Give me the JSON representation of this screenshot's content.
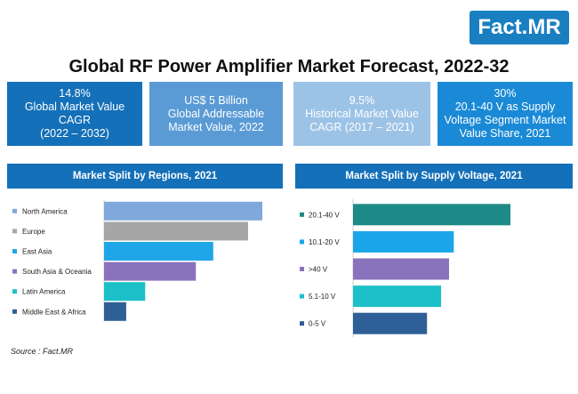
{
  "logo": {
    "text_main": "Fact",
    "text_dot": ".",
    "text_suffix": "MR",
    "color": "#1a7fc1"
  },
  "title": "Global RF Power Amplifier Market Forecast, 2022-32",
  "kpis": [
    {
      "lines": [
        "14.8%",
        "Global Market Value",
        "CAGR",
        "(2022 – 2032)"
      ],
      "color": "#1470b8"
    },
    {
      "lines": [
        "US$ 5 Billion",
        "Global Addressable",
        "Market Value, 2022"
      ],
      "color": "#5a9bd5"
    },
    {
      "lines": [
        "9.5%",
        "Historical Market Value",
        "CAGR (2017 – 2021)"
      ],
      "color": "#9cc3e6"
    },
    {
      "lines": [
        "30%",
        "20.1-40 V as Supply",
        "Voltage Segment Market",
        "Value Share, 2021"
      ],
      "color": "#1b8ad6"
    }
  ],
  "panels": {
    "left_header": "Market Split by Regions, 2021",
    "right_header": "Market Split by Supply Voltage, 2021",
    "header_color": "#1470b8"
  },
  "chart_data": [
    {
      "type": "bar",
      "orientation": "horizontal",
      "title": "Market Split by Regions, 2021",
      "categories": [
        "North America",
        "Europe",
        "East Asia",
        "South Asia & Oceania",
        "Latin America",
        "Middle East & Africa"
      ],
      "values": [
        100,
        91,
        69,
        58,
        26,
        14
      ],
      "colors": [
        "#7fa8dc",
        "#a6a6a6",
        "#1fa6e8",
        "#8a72bd",
        "#1cc0c8",
        "#2f5f97"
      ],
      "xlim": [
        0,
        100
      ],
      "grid": false,
      "axis_labels_shown": false
    },
    {
      "type": "bar",
      "orientation": "horizontal",
      "title": "Market Split by Supply Voltage, 2021",
      "categories": [
        "20.1-40 V",
        "10.1-20 V",
        ">40 V",
        "5.1-10 V",
        "0-5 V"
      ],
      "values": [
        100,
        64,
        61,
        56,
        47
      ],
      "colors": [
        "#1e8a87",
        "#1aa6e8",
        "#8a72bd",
        "#1cc0c8",
        "#2f5f97"
      ],
      "xlim": [
        0,
        100
      ],
      "grid": false,
      "axis_labels_shown": false
    }
  ],
  "source": "Source : Fact.MR"
}
